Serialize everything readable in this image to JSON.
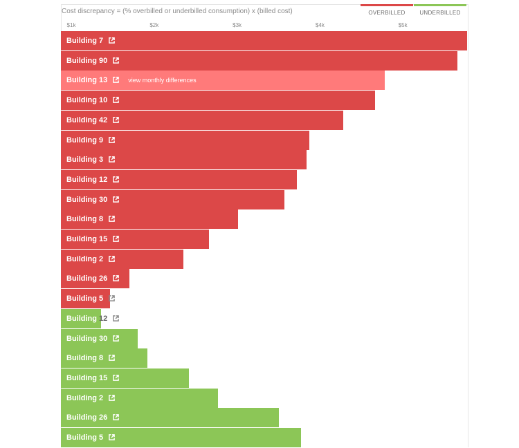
{
  "formula": "Cost discrepancy = (% overbilled or underbilled consumption) x (billed cost)",
  "legend": {
    "overbilled": "OVERBILLED",
    "underbilled": "UNDERBILLED"
  },
  "colors": {
    "overbilled": "#dc4848",
    "overbilled_highlight": "#ff7a7a",
    "underbilled": "#8cc657"
  },
  "hint_text": "view monthly differences",
  "chart_data": {
    "type": "bar",
    "orientation": "horizontal",
    "title": "Cost discrepancy = (% overbilled or underbilled consumption) x (billed cost)",
    "x_ticks": [
      "$1k",
      "$2k",
      "$3k",
      "$4k",
      "$5k"
    ],
    "x_tick_values": [
      1000,
      2000,
      3000,
      4000,
      5000
    ],
    "xlim": [
      1000,
      5900
    ],
    "series": [
      {
        "name": "OVERBILLED",
        "categories": [
          "Building 7",
          "Building 90",
          "Building 13",
          "Building 10",
          "Building 42",
          "Building 9",
          "Building 3",
          "Building 12",
          "Building 30",
          "Building 8",
          "Building 15",
          "Building 2",
          "Building 26",
          "Building 5"
        ],
        "values": [
          5900,
          5720,
          4840,
          4720,
          4340,
          3930,
          3900,
          3780,
          3630,
          3070,
          2720,
          2410,
          1760,
          1530
        ]
      },
      {
        "name": "UNDERBILLED",
        "categories": [
          "Building 12",
          "Building 30",
          "Building 8",
          "Building 15",
          "Building 2",
          "Building 26",
          "Building 5"
        ],
        "values": [
          1420,
          1860,
          1980,
          2480,
          2830,
          3560,
          3830
        ]
      }
    ]
  }
}
